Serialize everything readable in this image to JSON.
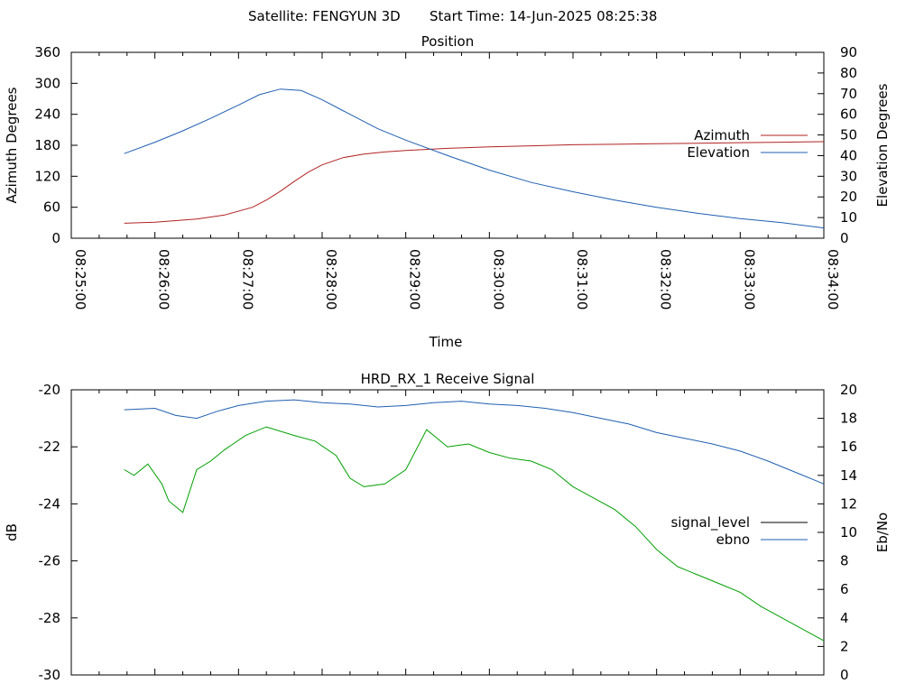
{
  "header": {
    "satellite": "Satellite: FENGYUN 3D",
    "start_time": "Start Time: 14-Jun-2025 08:25:38"
  },
  "chart_data": [
    {
      "type": "line",
      "title": "Position",
      "xlabel": "Time",
      "ylabel": "Azimuth Degrees",
      "y2label": "Elevation Degrees",
      "xlim": [
        "08:25:00",
        "08:34:00"
      ],
      "x_ticks": [
        "08:25:00",
        "08:26:00",
        "08:27:00",
        "08:28:00",
        "08:29:00",
        "08:30:00",
        "08:31:00",
        "08:32:00",
        "08:33:00",
        "08:34:00"
      ],
      "ylim": [
        0,
        360
      ],
      "y_ticks": [
        0,
        60,
        120,
        180,
        240,
        300,
        360
      ],
      "y2lim": [
        0,
        90
      ],
      "y2_ticks": [
        0,
        10,
        20,
        30,
        40,
        50,
        60,
        70,
        80,
        90
      ],
      "legend_position": "right",
      "series": [
        {
          "name": "Azimuth",
          "axis": "left",
          "color": "#b22222",
          "x": [
            "08:25:38",
            "08:26:00",
            "08:26:30",
            "08:26:50",
            "08:27:10",
            "08:27:20",
            "08:27:30",
            "08:27:40",
            "08:27:50",
            "08:28:00",
            "08:28:15",
            "08:28:30",
            "08:28:45",
            "08:29:00",
            "08:29:30",
            "08:30:00",
            "08:30:30",
            "08:31:00",
            "08:31:30",
            "08:32:00",
            "08:32:30",
            "08:33:00",
            "08:33:30",
            "08:34:00"
          ],
          "values": [
            29,
            31,
            37,
            45,
            60,
            74,
            91,
            110,
            128,
            142,
            156,
            163,
            167,
            170,
            174,
            177,
            179,
            181,
            182,
            183,
            184,
            185,
            186,
            187
          ]
        },
        {
          "name": "Elevation",
          "axis": "right",
          "color": "#1f5fb0",
          "x": [
            "08:25:38",
            "08:26:00",
            "08:26:20",
            "08:26:40",
            "08:27:00",
            "08:27:15",
            "08:27:30",
            "08:27:45",
            "08:28:00",
            "08:28:20",
            "08:28:40",
            "08:29:00",
            "08:29:30",
            "08:30:00",
            "08:30:30",
            "08:31:00",
            "08:31:30",
            "08:32:00",
            "08:32:30",
            "08:33:00",
            "08:33:30",
            "08:34:00"
          ],
          "values": [
            41,
            46.5,
            52,
            58,
            64.5,
            69.5,
            72.2,
            71.5,
            67,
            60,
            53,
            47.5,
            40,
            33,
            27,
            22.5,
            18.5,
            15,
            12,
            9.5,
            7.5,
            5
          ]
        }
      ]
    },
    {
      "type": "line",
      "title": "HRD_RX_1 Receive Signal",
      "xlabel": "",
      "ylabel": "dB",
      "y2label": "Eb/No",
      "xlim": [
        "08:25:00",
        "08:34:00"
      ],
      "ylim": [
        -30,
        -20
      ],
      "y_ticks": [
        -30,
        -28,
        -26,
        -24,
        -22,
        -20
      ],
      "y2lim": [
        0,
        20
      ],
      "y2_ticks": [
        0,
        2,
        4,
        6,
        8,
        10,
        12,
        14,
        16,
        18,
        20
      ],
      "legend_position": "right",
      "legend": [
        {
          "name": "signal_level",
          "color": "#000000"
        },
        {
          "name": "ebno",
          "color": "#1f5fb0"
        }
      ],
      "series": [
        {
          "name": "green",
          "axis": "left",
          "color": "#00a000",
          "x": [
            "08:25:38",
            "08:25:45",
            "08:25:55",
            "08:26:05",
            "08:26:10",
            "08:26:20",
            "08:26:30",
            "08:26:40",
            "08:26:50",
            "08:27:05",
            "08:27:20",
            "08:27:40",
            "08:27:55",
            "08:28:10",
            "08:28:20",
            "08:28:30",
            "08:28:45",
            "08:29:00",
            "08:29:15",
            "08:29:30",
            "08:29:45",
            "08:30:00",
            "08:30:15",
            "08:30:30",
            "08:30:45",
            "08:31:00",
            "08:31:15",
            "08:31:30",
            "08:31:45",
            "08:32:00",
            "08:32:15",
            "08:32:30",
            "08:32:45",
            "08:33:00",
            "08:33:15",
            "08:33:30",
            "08:33:45",
            "08:34:00"
          ],
          "values": [
            -22.8,
            -23.0,
            -22.6,
            -23.3,
            -23.9,
            -24.3,
            -22.8,
            -22.5,
            -22.1,
            -21.6,
            -21.3,
            -21.6,
            -21.8,
            -22.3,
            -23.1,
            -23.4,
            -23.3,
            -22.8,
            -21.4,
            -22.0,
            -21.9,
            -22.2,
            -22.4,
            -22.5,
            -22.8,
            -23.4,
            -23.8,
            -24.2,
            -24.8,
            -25.6,
            -26.2,
            -26.5,
            -26.8,
            -27.1,
            -27.6,
            -28.0,
            -28.4,
            -28.8
          ]
        },
        {
          "name": "ebno",
          "axis": "right",
          "color": "#1f5fb0",
          "x": [
            "08:25:38",
            "08:26:00",
            "08:26:15",
            "08:26:30",
            "08:26:45",
            "08:27:00",
            "08:27:20",
            "08:27:40",
            "08:28:00",
            "08:28:20",
            "08:28:40",
            "08:29:00",
            "08:29:20",
            "08:29:40",
            "08:30:00",
            "08:30:20",
            "08:30:40",
            "08:31:00",
            "08:31:20",
            "08:31:40",
            "08:32:00",
            "08:32:20",
            "08:32:40",
            "08:33:00",
            "08:33:20",
            "08:33:40",
            "08:34:00"
          ],
          "values": [
            18.6,
            18.7,
            18.2,
            18.0,
            18.5,
            18.9,
            19.2,
            19.3,
            19.1,
            19.0,
            18.8,
            18.9,
            19.1,
            19.2,
            19.0,
            18.9,
            18.7,
            18.4,
            18.0,
            17.6,
            17.0,
            16.6,
            16.2,
            15.7,
            15.0,
            14.2,
            13.4
          ]
        }
      ]
    }
  ]
}
